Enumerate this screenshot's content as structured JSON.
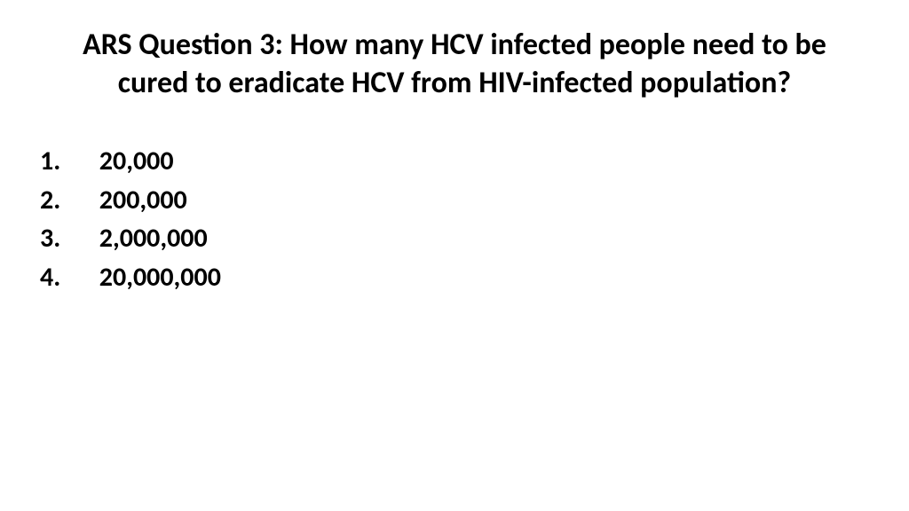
{
  "slide": {
    "title": "ARS Question 3: How many HCV infected people need to be cured to eradicate HCV from HIV-infected population?",
    "title_fontsize": 34,
    "title_fontweight": 700,
    "title_color": "#000000",
    "background_color": "#ffffff",
    "options": [
      {
        "num": "1.",
        "value": "20,000"
      },
      {
        "num": "2.",
        "value": "200,000"
      },
      {
        "num": "3.",
        "value": "2,000,000"
      },
      {
        "num": "4.",
        "value": "20,000,000"
      }
    ],
    "option_fontsize": 30,
    "option_fontweight": 700,
    "option_color": "#000000"
  }
}
